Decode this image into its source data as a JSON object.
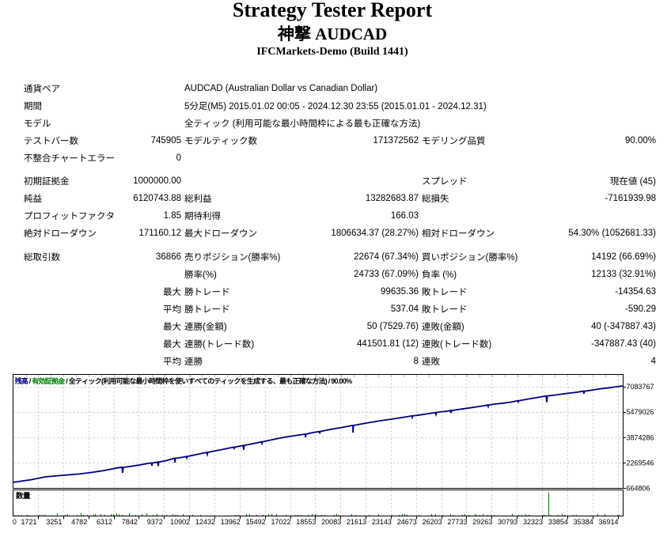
{
  "header": {
    "title": "Strategy Tester Report",
    "subtitle": "神撃 AUDCAD",
    "broker": "IFCMarkets-Demo (Build 1441)"
  },
  "table": {
    "rows": [
      {
        "type": "wide",
        "label": "通貨ペア",
        "value": "AUDCAD (Australian Dollar vs Canadian Dollar)"
      },
      {
        "type": "wide",
        "label": "期間",
        "value": "5分足(M5) 2015.01.02 00:05 - 2024.12.30 23:55 (2015.01.01 - 2024.12.31)"
      },
      {
        "type": "wide",
        "label": "モデル",
        "value": "全ティック (利用可能な最小時間枠による最も正確な方法)"
      },
      {
        "type": "cols",
        "cells": [
          "テストバー数",
          "745905",
          "モデルティック数",
          "171372562",
          "モデリング品質",
          "90.00%"
        ]
      },
      {
        "type": "cols",
        "cells": [
          "不整合チャートエラー",
          "0",
          "",
          "",
          "",
          ""
        ]
      },
      {
        "type": "gap",
        "cells": []
      },
      {
        "type": "cols",
        "cells": [
          "初期証拠金",
          "1000000.00",
          "",
          "",
          "スプレッド",
          "現在値 (45)"
        ]
      },
      {
        "type": "cols",
        "cells": [
          "純益",
          "6120743.88",
          "総利益",
          "13282683.87",
          "総損失",
          "-7161939.98"
        ]
      },
      {
        "type": "cols",
        "cells": [
          "プロフィットファクタ",
          "1.85",
          "期待利得",
          "166.03",
          "",
          ""
        ]
      },
      {
        "type": "cols",
        "cells": [
          "絶対ドローダウン",
          "171160.12",
          "最大ドローダウン",
          "1806634.37 (28.27%)",
          "相対ドローダウン",
          "54.30% (1052681.33)"
        ]
      },
      {
        "type": "gap",
        "cells": []
      },
      {
        "type": "cols",
        "cells": [
          "総取引数",
          "36866",
          "売りポジション(勝率%)",
          "22674 (67.34%)",
          "買いポジション(勝率%)",
          "14192 (66.69%)"
        ]
      },
      {
        "type": "cols",
        "cells": [
          "",
          "",
          "勝率(%)",
          "24733 (67.09%)",
          "負率 (%)",
          "12133 (32.91%)"
        ]
      },
      {
        "type": "cols",
        "cells": [
          "",
          "最大",
          "勝トレード",
          "99635.36",
          "敗トレード",
          "-14354.63"
        ]
      },
      {
        "type": "cols",
        "cells": [
          "",
          "平均",
          "勝トレード",
          "537.04",
          "敗トレード",
          "-590.29"
        ]
      },
      {
        "type": "cols",
        "cells": [
          "",
          "最大",
          "連勝(金額)",
          "50 (7529.76)",
          "連敗(金額)",
          "40 (-347887.43)"
        ]
      },
      {
        "type": "cols",
        "cells": [
          "",
          "最大",
          "連勝(トレード数)",
          "441501.81 (12)",
          "連敗(トレード数)",
          "-347887.43 (40)"
        ]
      },
      {
        "type": "cols",
        "cells": [
          "",
          "平均",
          "連勝",
          "8",
          "連敗",
          "4"
        ]
      }
    ]
  },
  "chart_data": {
    "type": "line",
    "legend": [
      {
        "text": "残高",
        "color": "#000080"
      },
      {
        "text": " / ",
        "color": "#000000"
      },
      {
        "text": "有効証拠金",
        "color": "#008000"
      },
      {
        "text": " / 全ティック(利用可能な最小時間枠を使いすべてのティックを生成する、最も正確な方法) / 90.00%",
        "color": "#000000"
      }
    ],
    "balance_series": {
      "name": "残高",
      "color": "#000080",
      "points": [
        [
          0,
          1014749
        ],
        [
          1148,
          1189721
        ],
        [
          1960,
          1364693
        ],
        [
          3060,
          1464677
        ],
        [
          4017,
          1544664
        ],
        [
          4734,
          1639648
        ],
        [
          5451,
          1749630
        ],
        [
          6455,
          1954597
        ],
        [
          6613,
          1970150
        ],
        [
          6646,
          1620207
        ],
        [
          6680,
          1970150
        ],
        [
          6885,
          1989592
        ],
        [
          7603,
          2104573
        ],
        [
          8177,
          2214555
        ],
        [
          8382,
          2245800
        ],
        [
          8416,
          2070828
        ],
        [
          8449,
          2245800
        ],
        [
          8750,
          2289543
        ],
        [
          8765,
          2298632
        ],
        [
          8798,
          2048673
        ],
        [
          8832,
          2298632
        ],
        [
          9276,
          2389527
        ],
        [
          9769,
          2539503
        ],
        [
          9802,
          2539503
        ],
        [
          9802,
          2264547
        ],
        [
          9836,
          2539503
        ],
        [
          10328,
          2614490
        ],
        [
          10486,
          2651984
        ],
        [
          10519,
          2552001
        ],
        [
          10553,
          2651984
        ],
        [
          10711,
          2689478
        ],
        [
          11285,
          2814458
        ],
        [
          11729,
          2910596
        ],
        [
          11763,
          2785617
        ],
        [
          11796,
          2910596
        ],
        [
          11906,
          2939438
        ],
        [
          12528,
          3064418
        ],
        [
          13102,
          3189397
        ],
        [
          13355,
          3240389
        ],
        [
          13388,
          3165401
        ],
        [
          13422,
          3240389
        ],
        [
          13580,
          3274384
        ],
        [
          13929,
          3351038
        ],
        [
          13962,
          3076082
        ],
        [
          13996,
          3351038
        ],
        [
          14153,
          3389365
        ],
        [
          14775,
          3514345
        ],
        [
          15029,
          3576835
        ],
        [
          15062,
          3476851
        ],
        [
          15095,
          3576835
        ],
        [
          15349,
          3639325
        ],
        [
          15970,
          3774303
        ],
        [
          16544,
          3889284
        ],
        [
          17166,
          3989268
        ],
        [
          17658,
          4064256
        ],
        [
          17692,
          4064256
        ],
        [
          17692,
          3864288
        ],
        [
          17725,
          4064256
        ],
        [
          18122,
          4164240
        ],
        [
          18519,
          4224230
        ],
        [
          18553,
          4224230
        ],
        [
          18553,
          4099250
        ],
        [
          18586,
          4224230
        ],
        [
          18839,
          4289219
        ],
        [
          19413,
          4399202
        ],
        [
          20035,
          4514183
        ],
        [
          20527,
          4614167
        ],
        [
          20561,
          4614167
        ],
        [
          20561,
          4164240
        ],
        [
          20594,
          4614167
        ],
        [
          21230,
          4739147
        ],
        [
          21804,
          4839130
        ],
        [
          22378,
          4939114
        ],
        [
          22904,
          5014102
        ],
        [
          23525,
          5114086
        ],
        [
          24099,
          5214070
        ],
        [
          24114,
          5220069
        ],
        [
          24147,
          5120085
        ],
        [
          24180,
          5220069
        ],
        [
          24577,
          5274060
        ],
        [
          25151,
          5364045
        ],
        [
          25548,
          5433265
        ],
        [
          25581,
          5308285
        ],
        [
          25615,
          5433265
        ],
        [
          25773,
          5464029
        ],
        [
          26251,
          5514021
        ],
        [
          26456,
          5552476
        ],
        [
          26490,
          5402501
        ],
        [
          26523,
          5552476
        ],
        [
          26872,
          5614005
        ],
        [
          27446,
          5698991
        ],
        [
          27924,
          5768980
        ],
        [
          28498,
          5863964
        ],
        [
          28704,
          5902420
        ],
        [
          28737,
          5802436
        ],
        [
          28771,
          5902420
        ],
        [
          29120,
          5963948
        ],
        [
          29694,
          6028938
        ],
        [
          30076,
          6083929
        ],
        [
          30521,
          6171415
        ],
        [
          30554,
          6096427
        ],
        [
          30588,
          6171415
        ],
        [
          30650,
          6188912
        ],
        [
          31176,
          6288896
        ],
        [
          31750,
          6388879
        ],
        [
          32228,
          6473866
        ],
        [
          32242,
          6479282
        ],
        [
          32276,
          6079346
        ],
        [
          32309,
          6479282
        ],
        [
          32802,
          6538855
        ],
        [
          33375,
          6623841
        ],
        [
          33901,
          6688831
        ],
        [
          34332,
          6753820
        ],
        [
          34490,
          6779271
        ],
        [
          34523,
          6629295
        ],
        [
          34556,
          6779271
        ],
        [
          34858,
          6823809
        ],
        [
          35384,
          6913795
        ],
        [
          35862,
          6973785
        ],
        [
          36340,
          7038774
        ],
        [
          36866,
          7113762
        ]
      ]
    },
    "volume": {
      "label": "数量",
      "color": "#008000",
      "bars": [
        [
          96,
          1
        ],
        [
          334,
          1
        ],
        [
          528,
          1
        ],
        [
          854,
          1
        ],
        [
          1639,
          1
        ],
        [
          1824,
          1
        ],
        [
          1971,
          1
        ],
        [
          2687,
          3
        ],
        [
          3144,
          1
        ],
        [
          3298,
          2
        ],
        [
          3861,
          1
        ],
        [
          4098,
          3
        ],
        [
          4266,
          1
        ],
        [
          4485,
          1
        ],
        [
          4860,
          1
        ],
        [
          4988,
          2
        ],
        [
          5302,
          2
        ],
        [
          5564,
          1
        ],
        [
          5937,
          2
        ],
        [
          6080,
          2
        ],
        [
          6281,
          3
        ],
        [
          6424,
          2
        ],
        [
          6583,
          1
        ],
        [
          7022,
          3
        ],
        [
          7432,
          1
        ],
        [
          7817,
          2
        ],
        [
          8057,
          3
        ],
        [
          8461,
          1
        ],
        [
          8705,
          2
        ],
        [
          9049,
          1
        ],
        [
          9260,
          1
        ],
        [
          9647,
          2
        ],
        [
          9789,
          1
        ],
        [
          9963,
          1
        ],
        [
          10260,
          2
        ],
        [
          10847,
          1
        ],
        [
          11327,
          1
        ],
        [
          13433,
          1
        ],
        [
          13629,
          1
        ],
        [
          14089,
          2
        ],
        [
          14282,
          2
        ],
        [
          14706,
          1
        ],
        [
          15125,
          1
        ],
        [
          15422,
          2
        ],
        [
          15625,
          2
        ],
        [
          15925,
          2
        ],
        [
          16485,
          1
        ],
        [
          17074,
          1
        ],
        [
          17226,
          1
        ],
        [
          17424,
          1
        ],
        [
          17827,
          1
        ],
        [
          18058,
          2
        ],
        [
          18249,
          2
        ],
        [
          18367,
          1
        ],
        [
          18631,
          1
        ],
        [
          18830,
          1
        ],
        [
          19417,
          1
        ],
        [
          19533,
          2
        ],
        [
          19672,
          1
        ],
        [
          20481,
          2
        ],
        [
          20692,
          1
        ],
        [
          21530,
          1
        ],
        [
          22107,
          2
        ],
        [
          22927,
          1
        ],
        [
          23318,
          1
        ],
        [
          23541,
          2
        ],
        [
          23679,
          2
        ],
        [
          23813,
          1
        ],
        [
          24538,
          1
        ],
        [
          25277,
          2
        ],
        [
          25512,
          2
        ],
        [
          25948,
          1
        ],
        [
          26432,
          2
        ],
        [
          26622,
          1
        ],
        [
          27154,
          1
        ],
        [
          27286,
          2
        ],
        [
          27521,
          1
        ],
        [
          27901,
          2
        ],
        [
          28018,
          1
        ],
        [
          28225,
          1
        ],
        [
          28423,
          2
        ],
        [
          28702,
          1
        ],
        [
          28876,
          1
        ],
        [
          29061,
          1
        ],
        [
          30169,
          2
        ],
        [
          30547,
          1
        ],
        [
          30759,
          1
        ],
        [
          30985,
          2
        ],
        [
          31116,
          1
        ],
        [
          31234,
          1
        ],
        [
          32023,
          1
        ],
        [
          32152,
          1
        ],
        [
          32371,
          29
        ],
        [
          32470,
          1
        ],
        [
          32936,
          1
        ],
        [
          33179,
          2
        ],
        [
          33337,
          1
        ],
        [
          33854,
          1
        ],
        [
          34068,
          1
        ],
        [
          35347,
          2
        ],
        [
          35785,
          2
        ],
        [
          36529,
          1
        ],
        [
          36645,
          1
        ]
      ]
    },
    "x_axis": {
      "range": [
        0,
        36866
      ],
      "tick_labels": [
        "0",
        "1721",
        "3251",
        "4782",
        "6312",
        "7842",
        "9372",
        "10902",
        "12432",
        "13962",
        "15492",
        "17022",
        "18553",
        "20083",
        "21613",
        "23143",
        "24673",
        "26203",
        "27733",
        "29263",
        "30793",
        "32323",
        "33854",
        "35384",
        "36914"
      ]
    },
    "y_axis": {
      "tick_labels": [
        "7083767",
        "5479026",
        "3874286",
        "2269546",
        "664806"
      ],
      "tick_values": [
        7083767,
        5479026,
        3874286,
        2269546,
        664806
      ]
    },
    "grid": {
      "on": true,
      "color": "#c8c8c8",
      "style": "dashed"
    }
  }
}
